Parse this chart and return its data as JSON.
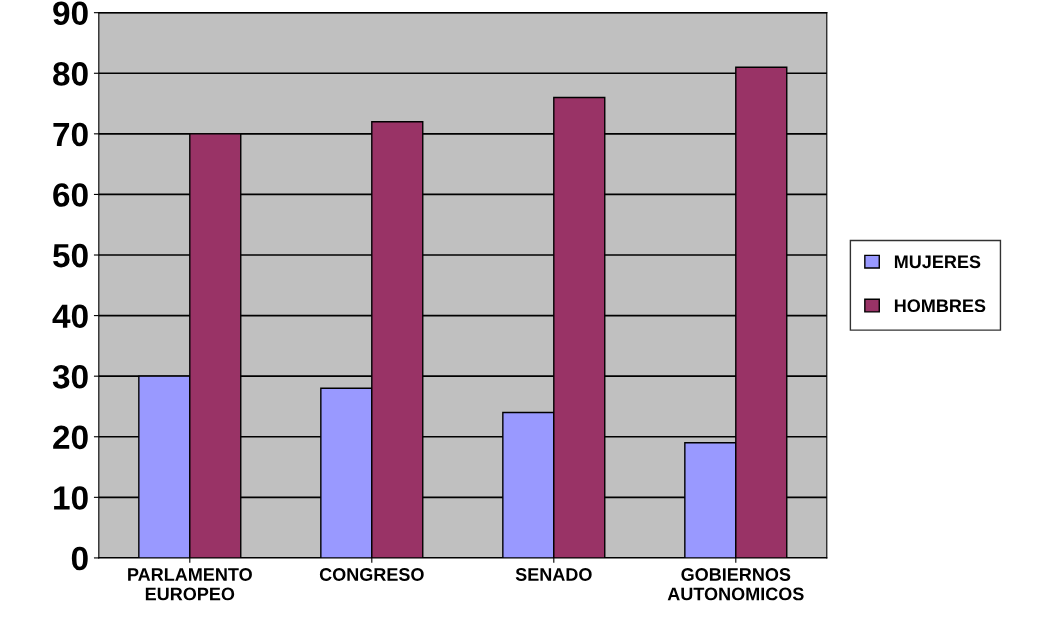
{
  "chart_data": {
    "type": "bar",
    "categories": [
      "PARLAMENTO\nEUROPEO",
      "CONGRESO",
      "SENADO",
      "GOBIERNOS\nAUTONOMICOS"
    ],
    "series": [
      {
        "name": "MUJERES",
        "color": "#9999ff",
        "values": [
          30,
          28,
          24,
          19
        ]
      },
      {
        "name": "HOMBRES",
        "color": "#993366",
        "values": [
          70,
          72,
          76,
          81
        ]
      }
    ],
    "ylim": [
      0,
      90
    ],
    "yticks": [
      0,
      10,
      20,
      30,
      40,
      50,
      60,
      70,
      80,
      90
    ],
    "grid": "y",
    "legend": "right"
  }
}
